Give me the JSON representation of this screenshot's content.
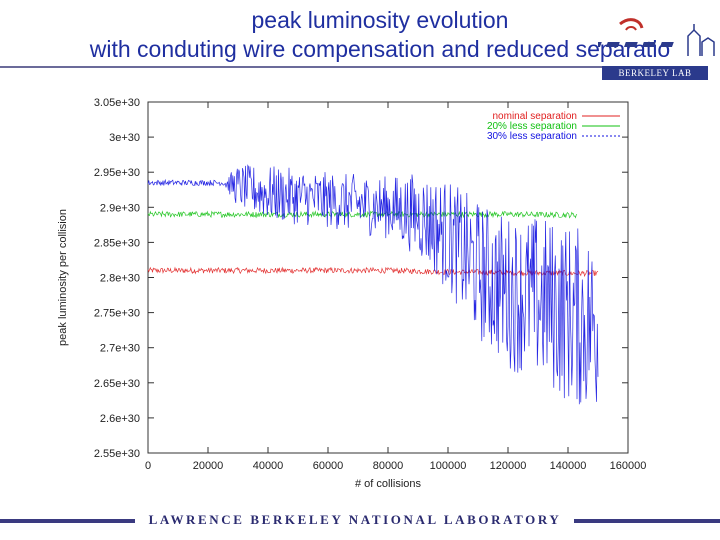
{
  "slide": {
    "title_line1": "peak luminosity evolution",
    "title_line2": "with conduting wire compensation and reduced separatio",
    "logo_text": "BERKELEY LAB",
    "footer": "LAWRENCE BERKELEY NATIONAL LABORATORY"
  },
  "colors": {
    "title": "#1f2fa0",
    "nominal": "#e02020",
    "less20": "#10c010",
    "less30": "#1010e0",
    "footer": "#2b2b70"
  },
  "chart_data": {
    "type": "line",
    "xlabel": "# of collisions",
    "ylabel": "peak luminosity per collision",
    "xlim": [
      0,
      160000
    ],
    "ylim": [
      2.55e+30,
      3.05e+30
    ],
    "xticks": [
      "0",
      "20000",
      "40000",
      "60000",
      "80000",
      "100000",
      "120000",
      "140000",
      "160000"
    ],
    "yticks": [
      "2.55e+30",
      "2.6e+30",
      "2.65e+30",
      "2.7e+30",
      "2.75e+30",
      "2.8e+30",
      "2.85e+30",
      "2.9e+30",
      "2.95e+30",
      "3e+30",
      "3.05e+30"
    ],
    "legend_position": "top-right",
    "series": [
      {
        "name": "nominal separation",
        "color_key": "nominal",
        "x": [
          0,
          20000,
          40000,
          60000,
          80000,
          100000,
          120000,
          140000,
          150000
        ],
        "y": [
          2.81e+30,
          2.81e+30,
          2.81e+30,
          2.81e+30,
          2.81e+30,
          2.808e+30,
          2.807e+30,
          2.806e+30,
          2.806e+30
        ],
        "noise": [
          4e+27,
          4e+27,
          4e+27,
          4e+27,
          4e+27,
          4e+27,
          4e+27,
          4e+27,
          4e+27
        ]
      },
      {
        "name": "20% less separation",
        "color_key": "less20",
        "x": [
          0,
          20000,
          40000,
          60000,
          80000,
          100000,
          120000,
          143000
        ],
        "y": [
          2.89e+30,
          2.89e+30,
          2.89e+30,
          2.89e+30,
          2.89e+30,
          2.89e+30,
          2.89e+30,
          2.889e+30
        ],
        "noise": [
          4e+27,
          4e+27,
          4e+27,
          4e+27,
          4e+27,
          4e+27,
          4e+27,
          4e+27
        ]
      },
      {
        "name": "30% less separation",
        "color_key": "less30",
        "x": [
          0,
          25000,
          30000,
          40000,
          60000,
          80000,
          90000,
          100000,
          110000,
          120000,
          130000,
          140000,
          150000
        ],
        "y": [
          2.935e+30,
          2.935e+30,
          2.93e+30,
          2.92e+30,
          2.91e+30,
          2.9e+30,
          2.89e+30,
          2.86e+30,
          2.81e+30,
          2.78e+30,
          2.77e+30,
          2.75e+30,
          2.73e+30
        ],
        "noise": [
          4e+27,
          4e+27,
          3e+28,
          4e+28,
          4e+28,
          4.5e+28,
          6e+28,
          8e+28,
          1e+29,
          1.1e+29,
          1.2e+29,
          1.3e+29,
          1.3e+29
        ]
      }
    ]
  }
}
